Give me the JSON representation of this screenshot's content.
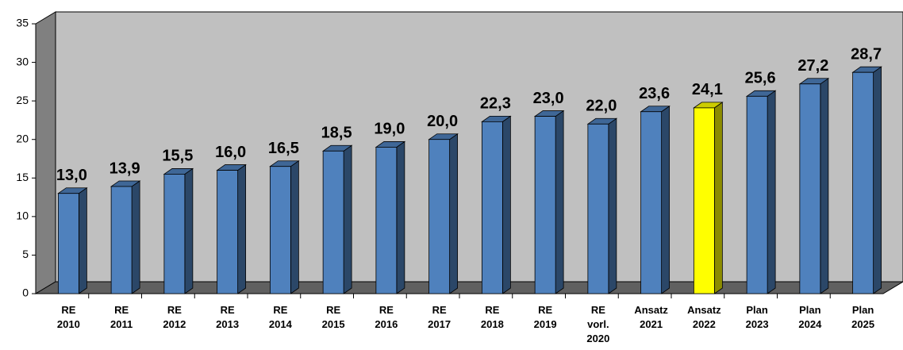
{
  "chart_data": {
    "type": "bar3d",
    "categories": [
      "RE 2010",
      "RE 2011",
      "RE 2012",
      "RE 2013",
      "RE 2014",
      "RE 2015",
      "RE 2016",
      "RE 2017",
      "RE 2018",
      "RE 2019",
      "RE vorl. 2020",
      "Ansatz 2021",
      "Ansatz 2022",
      "Plan 2023",
      "Plan 2024",
      "Plan 2025"
    ],
    "values": [
      13.0,
      13.9,
      15.5,
      16.0,
      16.5,
      18.5,
      19.0,
      20.0,
      22.3,
      23.0,
      22.0,
      23.6,
      24.1,
      25.6,
      27.2,
      28.7
    ],
    "value_labels": [
      "13,0",
      "13,9",
      "15,5",
      "16,0",
      "16,5",
      "18,5",
      "19,0",
      "20,0",
      "22,3",
      "23,0",
      "22,0",
      "23,6",
      "24,1",
      "25,6",
      "27,2",
      "28,7"
    ],
    "colors": [
      "#4f81bd",
      "#4f81bd",
      "#4f81bd",
      "#4f81bd",
      "#4f81bd",
      "#4f81bd",
      "#4f81bd",
      "#4f81bd",
      "#4f81bd",
      "#4f81bd",
      "#4f81bd",
      "#4f81bd",
      "#ffff00",
      "#4f81bd",
      "#4f81bd",
      "#4f81bd"
    ],
    "ylim": [
      0,
      35
    ],
    "yticks": [
      0,
      5,
      10,
      15,
      20,
      25,
      30,
      35
    ]
  }
}
